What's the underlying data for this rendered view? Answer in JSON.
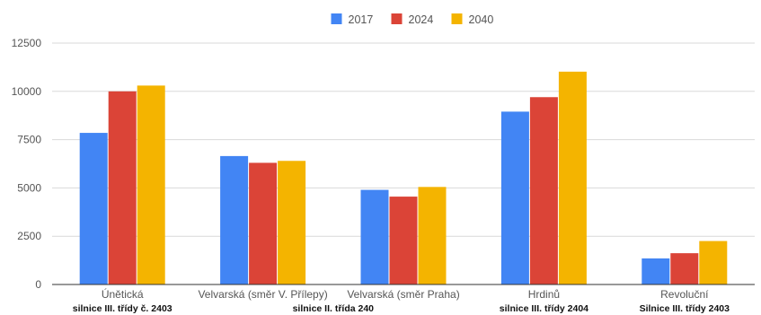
{
  "chart_data": {
    "type": "bar",
    "title": "",
    "xlabel": "",
    "ylabel": "",
    "categories": [
      "Únětická",
      "Velvarská (směr V. Přílepy)",
      "Velvarská (směr Praha)",
      "Hrdinů",
      "Revoluční"
    ],
    "series": [
      {
        "name": "2017",
        "color": "#4285f4",
        "values": [
          7850,
          6650,
          4900,
          8950,
          1350
        ]
      },
      {
        "name": "2024",
        "color": "#db4437",
        "values": [
          10000,
          6300,
          4550,
          9700,
          1620
        ]
      },
      {
        "name": "2040",
        "color": "#f4b400",
        "values": [
          10300,
          6400,
          5050,
          11020,
          2250
        ]
      }
    ],
    "ylim": [
      0,
      12500
    ],
    "yticks": [
      0,
      2500,
      5000,
      7500,
      10000,
      12500
    ],
    "ytick_labels": [
      "0",
      "2500",
      "5000",
      "7500",
      "10000",
      "12500"
    ],
    "grid": true,
    "legend_position": "top-center",
    "annotations": [
      {
        "text": "silnice III. třídy č. 2403",
        "category_index": 0
      },
      {
        "text": "silnice II. třída 240",
        "category_index": 1.5
      },
      {
        "text": "silnice III. třídy 2404",
        "category_index": 3
      },
      {
        "text": "Silnice III. třídy 2403",
        "category_index": 4
      }
    ]
  }
}
